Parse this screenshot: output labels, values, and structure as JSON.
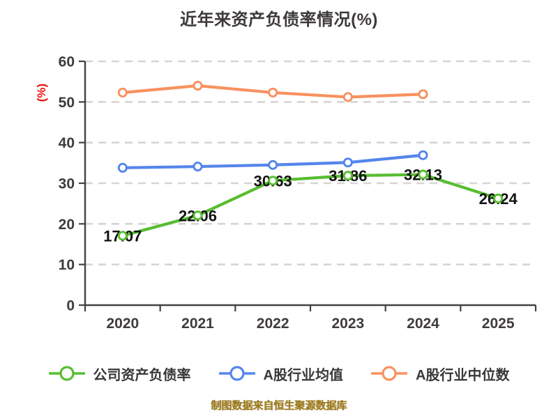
{
  "chart_data": {
    "type": "line",
    "title": "近年来资产负债率情况(%)",
    "ylabel": "(%)",
    "footer": "制图数据来自恒生聚源数据库",
    "x_categories": [
      "2020",
      "2021",
      "2022",
      "2023",
      "2024",
      "2025"
    ],
    "ylim": [
      0,
      60
    ],
    "ytick_interval": 10,
    "grid": "horizontal-dashed",
    "legend_position": "bottom",
    "colors": {
      "grid": "#d8d4d3",
      "axis": "#454142",
      "tick_text": "#3f3b3c",
      "data_label": "#121212",
      "marker_fill": "#ffffff",
      "title_text": "#3d3a39",
      "ylabel_text": "#ee1111",
      "footer_text": "#9c7b1c"
    },
    "series": [
      {
        "name": "公司资产负债率",
        "color": "#57bd30",
        "show_labels": true,
        "values": [
          17.07,
          22.06,
          30.63,
          31.86,
          32.13,
          26.24
        ]
      },
      {
        "name": "A股行业均值",
        "color": "#5486ec",
        "show_labels": false,
        "values": [
          33.8,
          34.1,
          34.5,
          35.1,
          36.9
        ]
      },
      {
        "name": "A股行业中位数",
        "color": "#f8915f",
        "show_labels": false,
        "values": [
          52.3,
          54.0,
          52.3,
          51.2,
          51.9
        ]
      }
    ]
  }
}
